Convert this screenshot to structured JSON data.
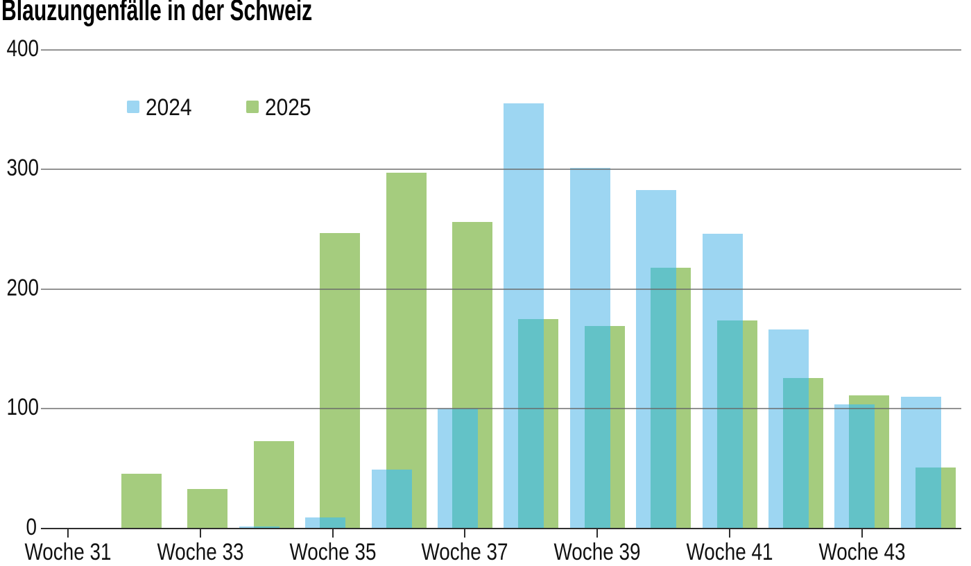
{
  "title": "Blauzungenfälle in der Schweiz",
  "legend": {
    "items": [
      {
        "label": "2024"
      },
      {
        "label": "2025"
      }
    ]
  },
  "chart_data": {
    "type": "bar",
    "title": "Blauzungenfälle in der Schweiz",
    "weeks": [
      31,
      32,
      33,
      34,
      35,
      36,
      37,
      38,
      39,
      40,
      41,
      42,
      43,
      44
    ],
    "series": [
      {
        "name": "2024",
        "color": "#9dd6f2",
        "values": [
          0,
          0,
          0,
          2,
          9,
          49,
          100,
          355,
          301,
          283,
          246,
          166,
          104,
          110
        ]
      },
      {
        "name": "2025",
        "color": "#a5cc7e",
        "values": [
          0,
          46,
          33,
          73,
          247,
          297,
          256,
          175,
          169,
          218,
          174,
          126,
          111,
          51
        ]
      }
    ],
    "overlap_color": "#63c2c7",
    "bar_style": "overlapping-pairs",
    "ylim": [
      0,
      400
    ],
    "yticks": [
      0,
      100,
      200,
      300,
      400
    ],
    "grid": true,
    "grid_over_bars": true,
    "grid_color": "#686868",
    "axis_color": "#2e2e2e",
    "x_ticks": [
      {
        "week": 31,
        "label": "Woche 31"
      },
      {
        "week": 33,
        "label": "Woche 33"
      },
      {
        "week": 35,
        "label": "Woche 35"
      },
      {
        "week": 37,
        "label": "Woche 37"
      },
      {
        "week": 39,
        "label": "Woche 39"
      },
      {
        "week": 41,
        "label": "Woche 41"
      },
      {
        "week": 43,
        "label": "Woche 43"
      }
    ],
    "legend_position": "top-left-inset"
  }
}
